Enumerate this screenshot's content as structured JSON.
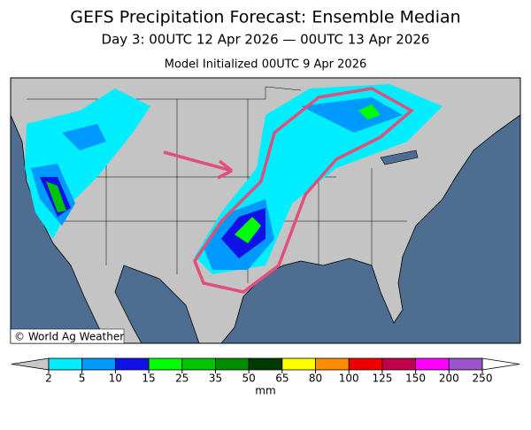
{
  "header": {
    "title": "GEFS Precipitation Forecast: Ensemble Median",
    "subtitle": "Day 3: 00UTC 12 Apr 2026 — 00UTC 13 Apr 2026",
    "initialized": "Model Initialized 00UTC 9 Apr 2026"
  },
  "map": {
    "credit": "© World Ag Weather"
  },
  "colorbar": {
    "levels": [
      2,
      5,
      10,
      15,
      25,
      35,
      50,
      65,
      80,
      100,
      125,
      150,
      200,
      250
    ],
    "colors": [
      "#00eeff",
      "#0099ff",
      "#1010e8",
      "#00ff00",
      "#00c400",
      "#008c00",
      "#003a00",
      "#ffff00",
      "#ff8c00",
      "#ee0000",
      "#c0004a",
      "#ff00ff",
      "#9955cc"
    ],
    "below_color": "#c8c8c8",
    "above_color": "#ffffff",
    "unit": "mm"
  }
}
